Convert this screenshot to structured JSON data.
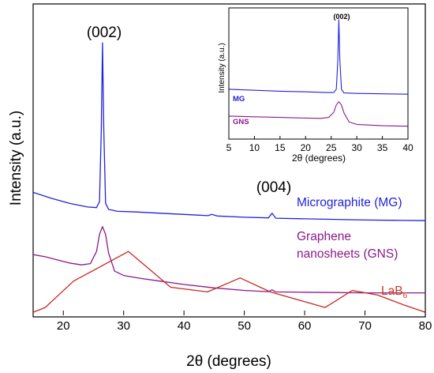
{
  "colors": {
    "mg": "#2222dd",
    "gns": "#8b1a8b",
    "lab6": "#c8281e",
    "lab6_label": "#c83c1e",
    "axis": "#000000"
  },
  "chart_data": [
    {
      "type": "line",
      "title": "",
      "xlabel": "2θ (degrees)",
      "ylabel": "Intensity (a.u.)",
      "xlim": [
        15,
        80
      ],
      "ylim": [
        0,
        100
      ],
      "xticks": [
        "20",
        "30",
        "40",
        "50",
        "60",
        "70",
        "80"
      ],
      "yticks": "none",
      "grid": false,
      "peak_annotations": [
        {
          "text": "(002)",
          "x": 26.5
        },
        {
          "text": "(004)",
          "x": 54.6
        }
      ],
      "series": [
        {
          "name": "Micrographite (MG)",
          "x": [
            15,
            18,
            21,
            24,
            25.5,
            26.0,
            26.3,
            26.5,
            26.7,
            27.0,
            27.5,
            29,
            32,
            36,
            40,
            44,
            44.6,
            45.5,
            50,
            54,
            54.6,
            55.2,
            60,
            65,
            70,
            75,
            80
          ],
          "values": [
            39.5,
            37.6,
            36.0,
            34.8,
            34.6,
            36.5,
            60,
            87.5,
            60,
            36,
            34.0,
            33.4,
            33.2,
            32.8,
            32.4,
            32.0,
            32.4,
            31.9,
            31.5,
            31.3,
            32.8,
            31.2,
            31.0,
            30.8,
            30.6,
            30.5,
            30.4
          ]
        },
        {
          "name": "Graphene nanosheets (GNS)",
          "x": [
            15,
            17,
            19,
            21,
            23,
            24.5,
            25.5,
            26.0,
            26.5,
            27.0,
            27.5,
            28.5,
            30,
            33,
            36,
            40,
            45,
            50,
            54,
            54.6,
            55.2,
            60,
            65,
            70,
            75,
            80
          ],
          "values": [
            19.5,
            18.8,
            17.8,
            16.8,
            16.2,
            16.6,
            20.5,
            26.0,
            28.5,
            26.0,
            20.0,
            14.2,
            12.8,
            11.8,
            11.0,
            9.9,
            8.8,
            8.0,
            7.6,
            8.2,
            7.5,
            7.4,
            7.3,
            7.2,
            7.2,
            7.2
          ]
        },
        {
          "name": "LaB6",
          "x": [
            15,
            17.0,
            21.7,
            30.8,
            37.8,
            43.9,
            49.3,
            54.3,
            63.4,
            67.9,
            72.1,
            76.2,
            80
          ],
          "values": [
            1.0,
            2.5,
            11.0,
            20.5,
            9.0,
            7.5,
            12.0,
            7.5,
            2.5,
            8.0,
            6.5,
            3.5,
            1.0
          ]
        }
      ],
      "series_labels": {
        "mg": "Micrographite (MG)",
        "gns_line1": "Graphene",
        "gns_line2": "nanosheets (GNS)",
        "lab6_base": "LaB",
        "lab6_sub": "6"
      }
    },
    {
      "type": "line",
      "title": "",
      "xlabel": "2θ (degrees)",
      "ylabel": "Intensity (a.u.)",
      "xlim": [
        5,
        40
      ],
      "ylim": [
        0,
        100
      ],
      "xticks": [
        "5",
        "10",
        "15",
        "20",
        "25",
        "30",
        "35",
        "40"
      ],
      "grid": false,
      "peak_annotations": [
        {
          "text": "(002)",
          "x": 26.5
        }
      ],
      "series": [
        {
          "name": "MG",
          "x": [
            5,
            10,
            15,
            20,
            24,
            25.5,
            26.0,
            26.3,
            26.5,
            26.7,
            27.0,
            27.5,
            30,
            35,
            40
          ],
          "values": [
            38,
            37.2,
            36.5,
            36.0,
            35.5,
            35.5,
            38,
            60,
            91,
            60,
            38,
            35.2,
            34.8,
            34.5,
            34.2
          ]
        },
        {
          "name": "GNS",
          "x": [
            5,
            10,
            15,
            20,
            23,
            24.5,
            25.5,
            26.0,
            26.5,
            27.0,
            27.5,
            28.5,
            30,
            35,
            40
          ],
          "values": [
            17.5,
            17.0,
            16.5,
            16.0,
            15.8,
            16.5,
            20.5,
            26.0,
            28.5,
            26.0,
            20.0,
            13.0,
            11.2,
            10.2,
            9.8
          ]
        }
      ],
      "series_labels": {
        "mg": "MG",
        "gns": "GNS"
      }
    }
  ]
}
